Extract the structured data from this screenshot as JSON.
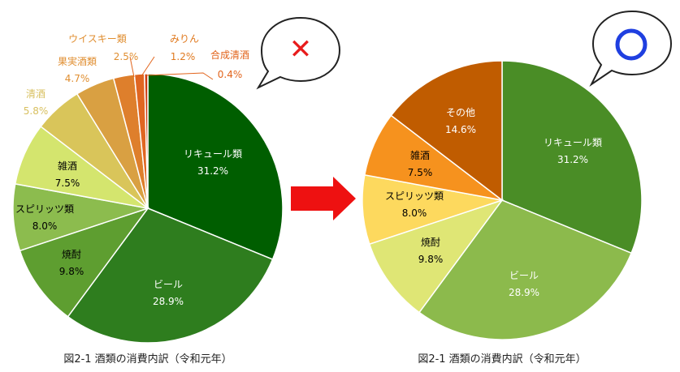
{
  "colors": {
    "bad_mark": "#e81c1c",
    "good_mark": "#1f3fe0",
    "arrow": "#ee1111",
    "bubble_stroke": "#222222"
  },
  "chart_data": [
    {
      "type": "pie",
      "caption": "図2-1 酒類の消費内訳（令和元年）",
      "marker": "✕",
      "categories": [
        "リキュール類",
        "ビール",
        "焼酎",
        "スピリッツ類",
        "雑酒",
        "清酒",
        "果実酒類",
        "ウイスキー類",
        "みりん",
        "合成清酒"
      ],
      "values": [
        31.2,
        28.9,
        9.8,
        8.0,
        7.5,
        5.8,
        4.7,
        2.5,
        1.2,
        0.4
      ],
      "value_labels": [
        "31.2%",
        "28.9%",
        "9.8%",
        "8.0%",
        "7.5%",
        "5.8%",
        "4.7%",
        "2.5%",
        "1.2%",
        "0.4%"
      ],
      "colors": [
        "#005e00",
        "#2e7d1e",
        "#5e9e30",
        "#8cbc4e",
        "#d4e56e",
        "#d9c55a",
        "#d9a042",
        "#de7f2c",
        "#e06622",
        "#cc3b10"
      ],
      "label_colors": [
        "#ffffff",
        "#ffffff",
        "#000000",
        "#000000",
        "#000000",
        "#d8c060",
        "#e08e30",
        "#e08e30",
        "#e07a20",
        "#e2641c"
      ]
    },
    {
      "type": "pie",
      "caption": "図2-1 酒類の消費内訳（令和元年）",
      "marker": "○",
      "categories": [
        "リキュール類",
        "ビール",
        "焼酎",
        "スピリッツ類",
        "雑酒",
        "その他"
      ],
      "values": [
        31.2,
        28.9,
        9.8,
        8.0,
        7.5,
        14.6
      ],
      "value_labels": [
        "31.2%",
        "28.9%",
        "9.8%",
        "8.0%",
        "7.5%",
        "14.6%"
      ],
      "colors": [
        "#4a8d26",
        "#8cba4c",
        "#dfe675",
        "#fdd95e",
        "#f6921e",
        "#c05c00"
      ],
      "label_colors": [
        "#ffffff",
        "#ffffff",
        "#000000",
        "#000000",
        "#000000",
        "#ffffff"
      ]
    }
  ]
}
